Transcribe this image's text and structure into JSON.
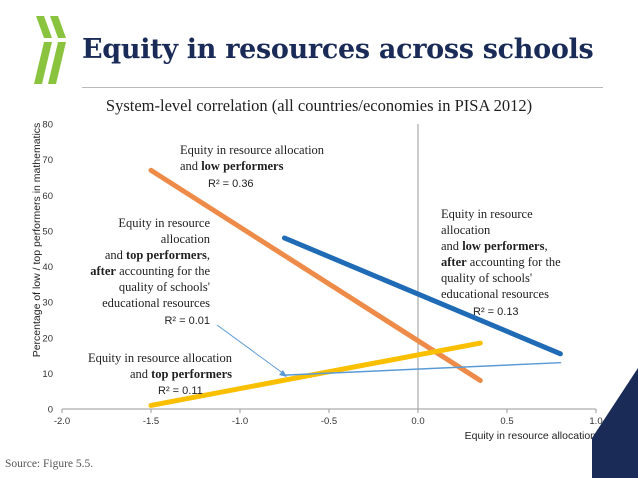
{
  "page": {
    "title": "Equity in resources across schools",
    "source": "Source: Figure 5.5."
  },
  "colors": {
    "title": "#1a2b57",
    "orange": "#ee8b48",
    "blue": "#1f6bb5",
    "yellow": "#fac000",
    "light_blue": "#5b9bd5",
    "logo": "#8ac43f"
  },
  "chart_data": {
    "type": "line",
    "title": "System-level correlation (all countries/economies in PISA 2012)",
    "xlabel": "Equity in resource allocation",
    "ylabel": "Percentage of low / top performers in mathematics",
    "xlim": [
      -2.0,
      1.0
    ],
    "ylim": [
      0,
      80
    ],
    "xticks": [
      "-2.0",
      "-1.5",
      "-1.0",
      "-0.5",
      "0.0",
      "0.5",
      "1.0"
    ],
    "yticks": [
      "0",
      "10",
      "20",
      "30",
      "40",
      "50",
      "60",
      "70",
      "80"
    ],
    "grid": false,
    "series": [
      {
        "id": "low",
        "color": "#ee8b48",
        "width": 5,
        "x": [
          -1.5,
          0.35
        ],
        "y": [
          67,
          8
        ]
      },
      {
        "id": "low_after",
        "color": "#1f6bb5",
        "width": 5,
        "x": [
          -0.75,
          0.8
        ],
        "y": [
          48,
          15.5
        ]
      },
      {
        "id": "top",
        "color": "#fac000",
        "width": 5,
        "x": [
          -1.5,
          0.35
        ],
        "y": [
          1,
          18.5
        ]
      },
      {
        "id": "top_after",
        "color": "#5b9bd5",
        "width": 1.5,
        "x": [
          -0.75,
          0.8
        ],
        "y": [
          9.5,
          13
        ]
      }
    ],
    "annotations": {
      "low": {
        "line1": "Equity in resource allocation",
        "line2a": "and ",
        "line2b": "low performers",
        "r2": "R² = 0.36"
      },
      "top_after": {
        "line1": "Equity in resource",
        "line2": "allocation",
        "line3a": "and ",
        "line3b": "top performers",
        "line3c": ",",
        "line4a": "after",
        "line4b": " accounting for the",
        "line5": "quality of schools'",
        "line6": "educational resources",
        "r2": "R² = 0.01"
      },
      "low_after": {
        "line1": "Equity in resource",
        "line2": "allocation",
        "line3a": "and ",
        "line3b": "low performers",
        "line3c": ",",
        "line4a": "after",
        "line4b": " accounting for the",
        "line5": "quality of schools'",
        "line6": "educational resources",
        "r2": "R² = 0.13"
      },
      "top": {
        "line1": "Equity in resource allocation",
        "line2a": "and ",
        "line2b": "top performers",
        "r2": "R² = 0.11"
      }
    }
  }
}
